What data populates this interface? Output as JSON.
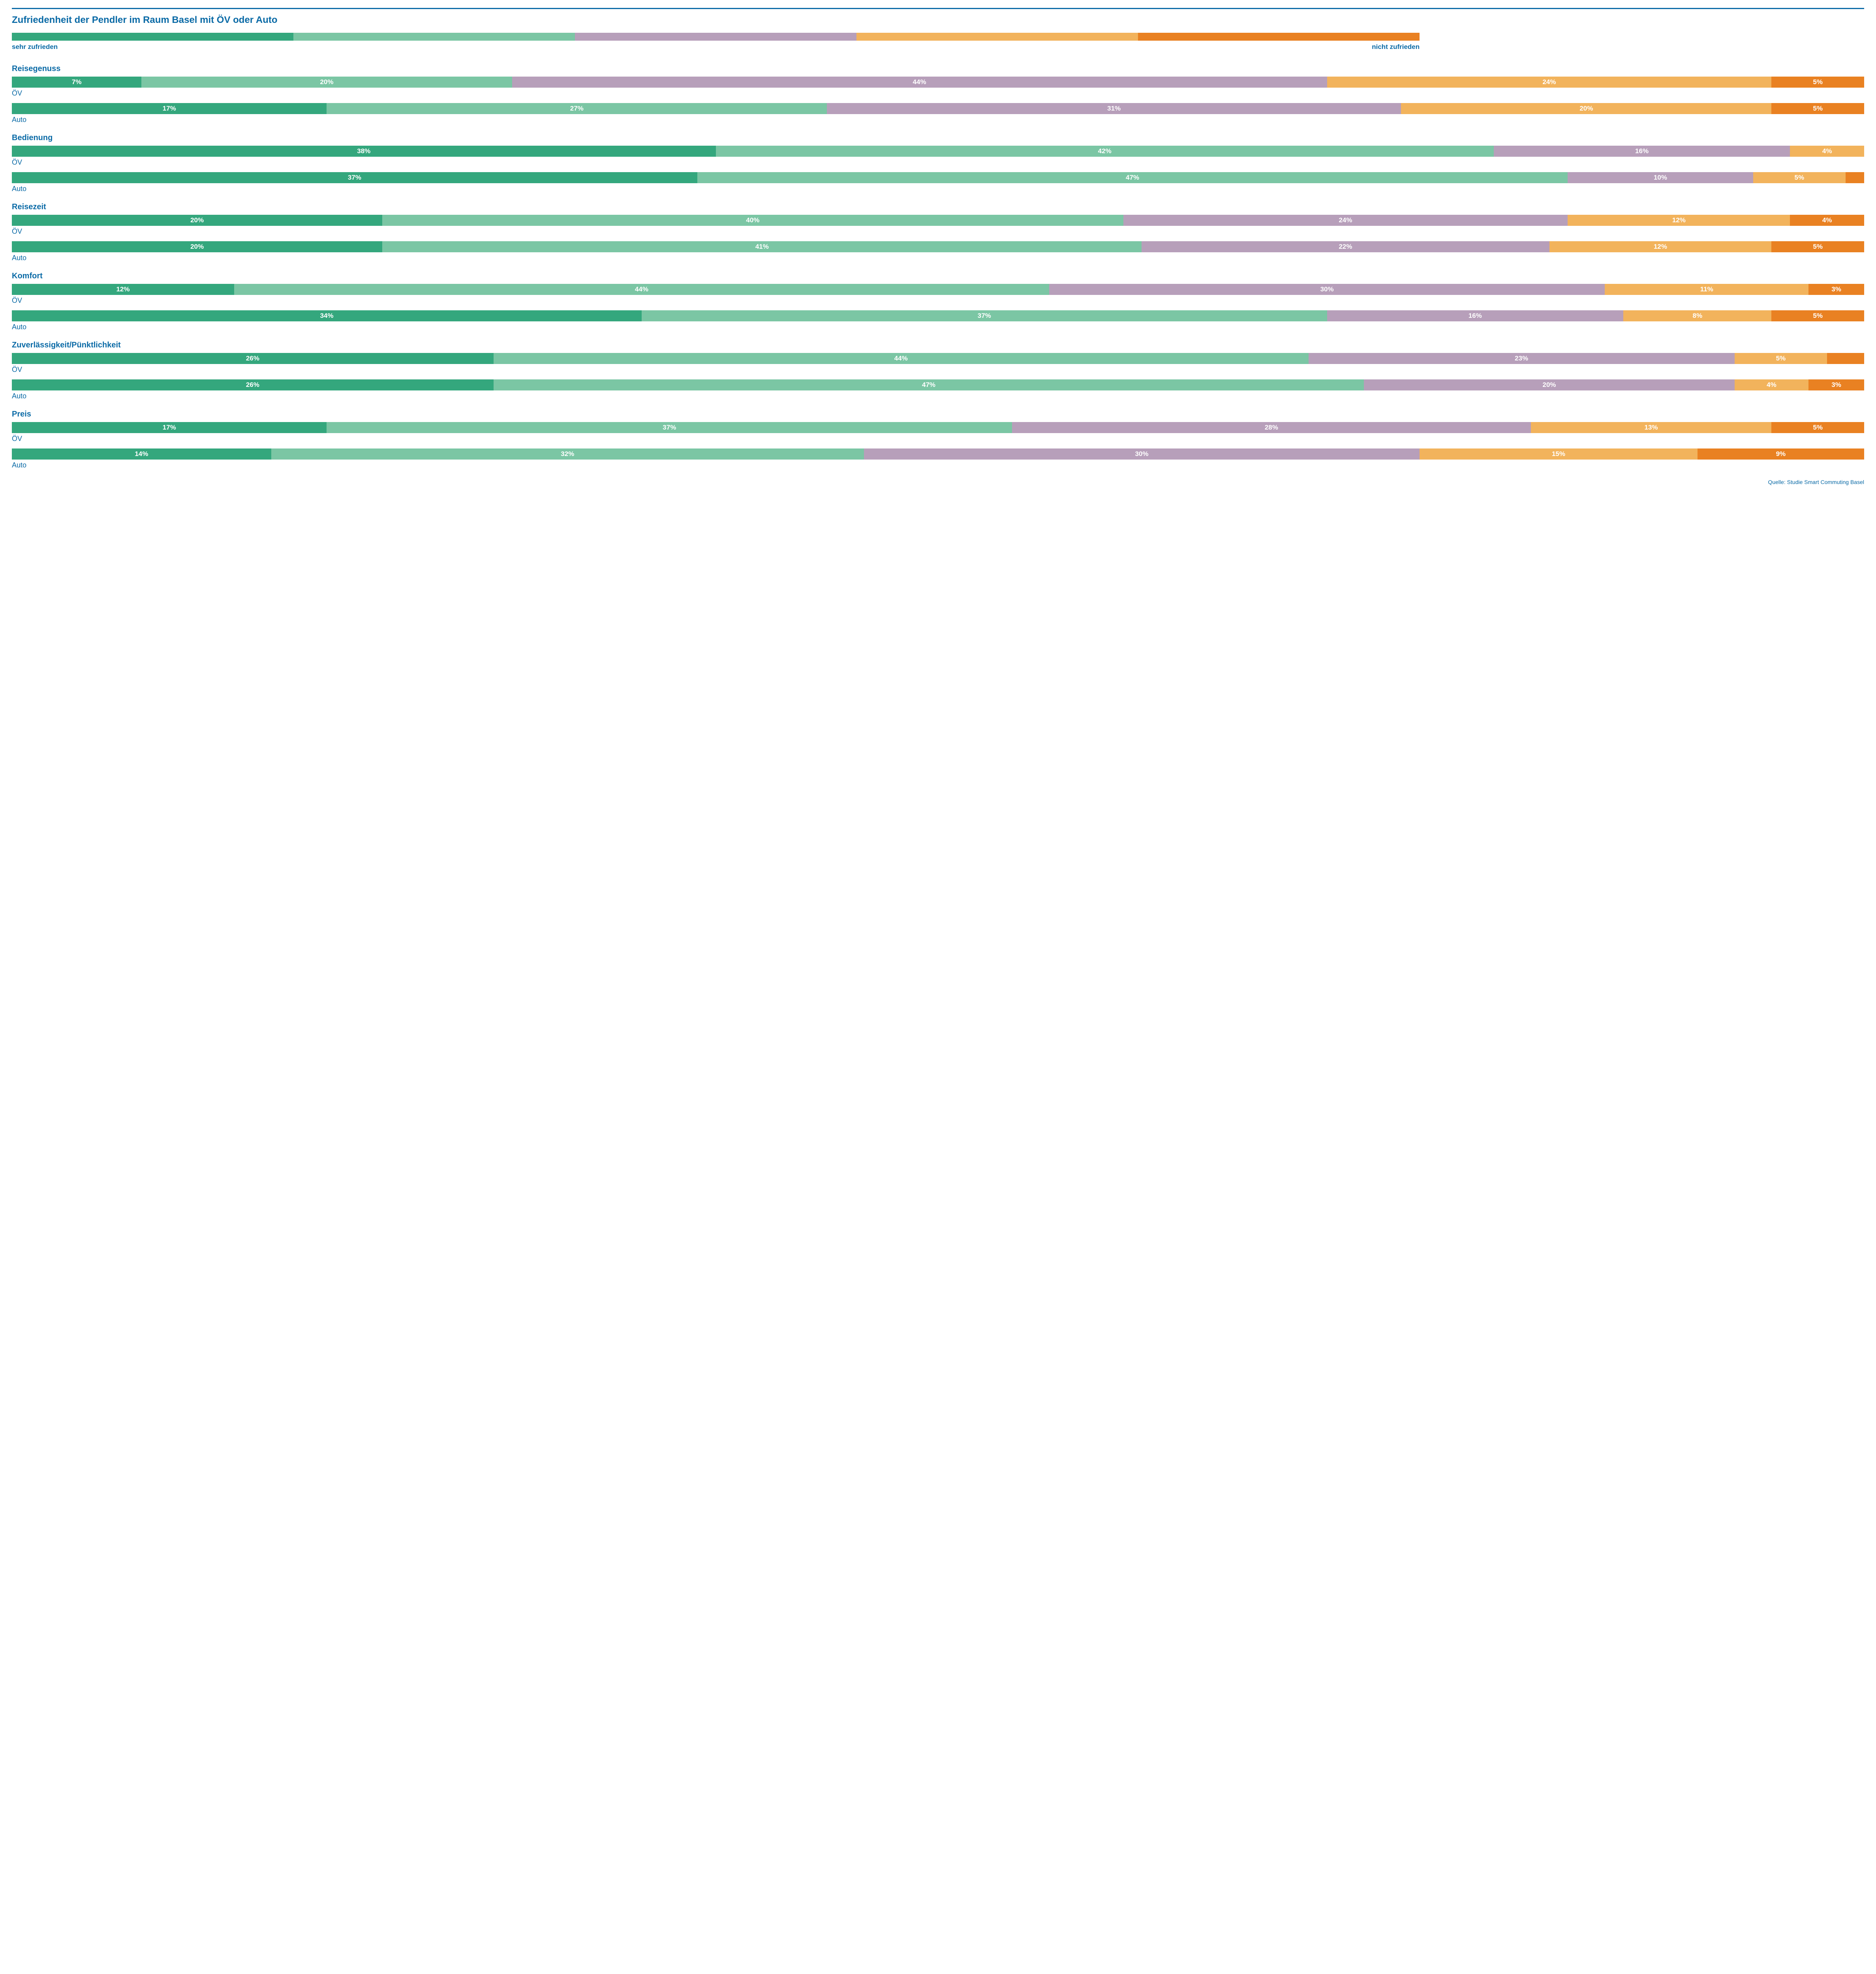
{
  "style": {
    "rule_color": "#0a6aa6",
    "title_color": "#0a6aa6",
    "title_fontsize": 24,
    "category_title_fontsize": 20,
    "category_title_color": "#0a6aa6",
    "bar_label_color": "#0a6aa6",
    "bar_label_fontsize": 18,
    "segment_label_fontsize": 17,
    "legend_label_fontsize": 17,
    "source_color": "#0a6aa6",
    "source_fontsize": 14,
    "segment_text_color": "#ffffff",
    "min_label_percent": 3
  },
  "title": "Zufriedenheit der Pendler im Raum Basel mit ÖV oder Auto",
  "palette": [
    "#34a77d",
    "#7bc6a4",
    "#b79fba",
    "#f2b35c",
    "#e98122"
  ],
  "legend": {
    "left": "sehr zufrieden",
    "right": "nicht zufrieden"
  },
  "series_labels": [
    "ÖV",
    "Auto"
  ],
  "categories": [
    {
      "name": "Reisegenuss",
      "rows": [
        [
          7,
          20,
          44,
          24,
          5
        ],
        [
          17,
          27,
          31,
          20,
          5
        ]
      ]
    },
    {
      "name": "Bedienung",
      "rows": [
        [
          38,
          42,
          16,
          4,
          0
        ],
        [
          37,
          47,
          10,
          5,
          1
        ]
      ]
    },
    {
      "name": "Reisezeit",
      "rows": [
        [
          20,
          40,
          24,
          12,
          4
        ],
        [
          20,
          41,
          22,
          12,
          5
        ]
      ]
    },
    {
      "name": "Komfort",
      "rows": [
        [
          12,
          44,
          30,
          11,
          3
        ],
        [
          34,
          37,
          16,
          8,
          5
        ]
      ]
    },
    {
      "name": "Zuverlässigkeit/Pünktlichkeit",
      "rows": [
        [
          26,
          44,
          23,
          5,
          2
        ],
        [
          26,
          47,
          20,
          4,
          3
        ]
      ]
    },
    {
      "name": "Preis",
      "rows": [
        [
          17,
          37,
          28,
          13,
          5
        ],
        [
          14,
          32,
          30,
          15,
          9
        ]
      ]
    }
  ],
  "source": "Quelle: Studie Smart Commuting Basel"
}
